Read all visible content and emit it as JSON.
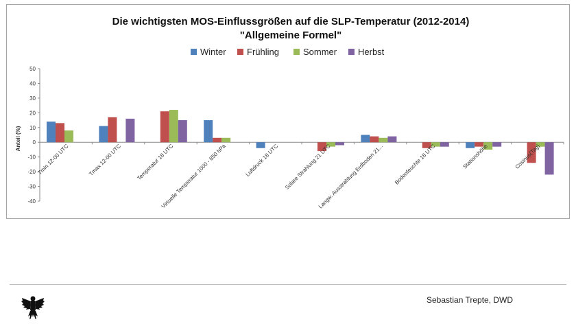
{
  "chart_data": {
    "type": "bar",
    "title": "Die wichtigsten MOS-Einflussgrößen auf die SLP-Temperatur (2012-2014)",
    "subtitle": "\"Allgemeine Formel\"",
    "ylabel": "Anteil (%)",
    "xlabel": "",
    "ylim": [
      -40,
      50
    ],
    "yticks": [
      50,
      40,
      30,
      20,
      10,
      0,
      -10,
      -20,
      -30,
      -40
    ],
    "legend_position": "top",
    "grid": false,
    "categories": [
      "Tmin 12-00 UTC",
      "Tmax 12-00 UTC",
      "Temperatur 18 UTC",
      "Virtuelle Temperatur 1000 - 850 hPa",
      "Luftdruck 18 UTC",
      "Solare Strahlung 21 UTC",
      "Langw. Ausstrahlung Erdboden 21...",
      "Bodenfeuchte 18 UTC",
      "Stationshöhe",
      "Cosinus(Tag)"
    ],
    "series": [
      {
        "name": "Winter",
        "color": "#4f81bd",
        "values": [
          14,
          11,
          0,
          15,
          -4,
          0,
          5,
          0,
          -4,
          0
        ]
      },
      {
        "name": "Frühling",
        "color": "#c0504d",
        "values": [
          13,
          17,
          21,
          3,
          0,
          -6,
          4,
          -4,
          -3,
          -14
        ]
      },
      {
        "name": "Sommer",
        "color": "#9bbb59",
        "values": [
          8,
          0,
          22,
          3,
          0,
          -3,
          3,
          -3,
          -5,
          -3
        ]
      },
      {
        "name": "Herbst",
        "color": "#8064a2",
        "values": [
          0,
          16,
          15,
          0,
          0,
          -2,
          4,
          -3,
          -3,
          -22
        ]
      }
    ]
  },
  "footer": {
    "author": "Sebastian Trepte, DWD",
    "logo_icon": "federal-eagle-icon"
  }
}
